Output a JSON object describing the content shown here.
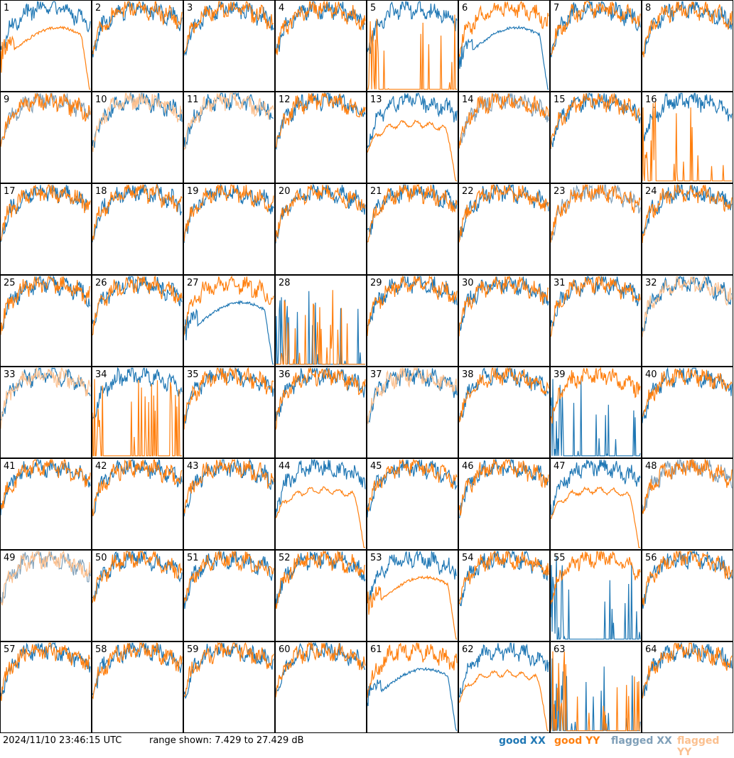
{
  "chart_data": {
    "type": "line",
    "layout": "8x8 small multiples of per-antenna bandpass spectra",
    "panels": [
      1,
      2,
      3,
      4,
      5,
      6,
      7,
      8,
      9,
      10,
      11,
      12,
      13,
      14,
      15,
      16,
      17,
      18,
      19,
      20,
      21,
      22,
      23,
      24,
      25,
      26,
      27,
      28,
      29,
      30,
      31,
      32,
      33,
      34,
      35,
      36,
      37,
      38,
      39,
      40,
      41,
      42,
      43,
      44,
      45,
      46,
      47,
      48,
      49,
      50,
      51,
      52,
      53,
      54,
      55,
      56,
      57,
      58,
      59,
      60,
      61,
      62,
      63,
      64
    ],
    "y_range_db": [
      7.429,
      27.429
    ],
    "series_legend": [
      {
        "name": "good XX",
        "color": "#1f77b4"
      },
      {
        "name": "good YY",
        "color": "#ff7f0e"
      },
      {
        "name": "flagged XX",
        "color": "#7f9fb8"
      },
      {
        "name": "flagged YY",
        "color": "#fbc08f"
      }
    ],
    "panel_status": {
      "xx_flagged": [
        9,
        14,
        23,
        48,
        49
      ],
      "yy_flagged": [
        10,
        11,
        32,
        33,
        37,
        49
      ],
      "xx_spiky": [
        28,
        39,
        55,
        63
      ],
      "yy_spiky": [
        5,
        16,
        28,
        34,
        63
      ],
      "xx_dip": [
        6,
        27,
        61
      ],
      "yy_dip": [
        1,
        53
      ],
      "yy_rolloff": [
        13,
        44,
        47,
        62
      ]
    }
  },
  "footer": {
    "timestamp": "2024/11/10 23:46:15 UTC",
    "range_text": "range shown: 7.429 to 27.429 dB",
    "legend": {
      "good_xx": "good XX",
      "good_yy": "good YY",
      "flagged_xx": "flagged XX",
      "flagged_yy": "flagged YY"
    }
  },
  "colors": {
    "good_xx": "#1f77b4",
    "good_yy": "#ff7f0e",
    "flagged_xx": "#7f9fb8",
    "flagged_yy": "#fbc08f"
  }
}
